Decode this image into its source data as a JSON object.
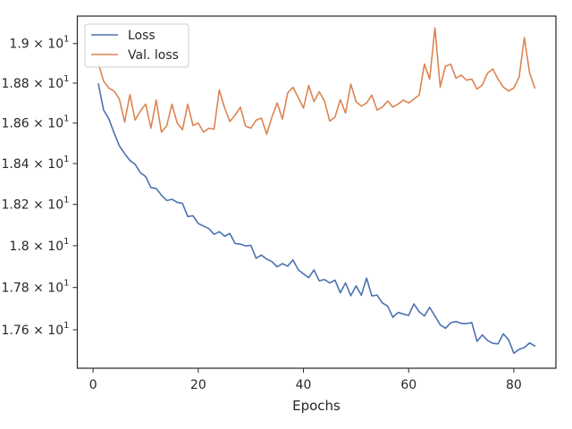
{
  "chart_data": {
    "type": "line",
    "xlabel": "Epochs",
    "ylabel": "",
    "title": "",
    "xlim": [
      -3,
      88
    ],
    "ylim": [
      17.42,
      19.14
    ],
    "y_scale": "log",
    "grid": false,
    "legend_position": "upper-left",
    "x_ticks": [
      {
        "value": 0,
        "label": "0"
      },
      {
        "value": 20,
        "label": "20"
      },
      {
        "value": 40,
        "label": "40"
      },
      {
        "value": 60,
        "label": "60"
      },
      {
        "value": 80,
        "label": "80"
      }
    ],
    "y_ticks": [
      {
        "value": 17.6,
        "mantissa": "1.76",
        "base": "10",
        "exp": "1"
      },
      {
        "value": 17.8,
        "mantissa": "1.78",
        "base": "10",
        "exp": "1"
      },
      {
        "value": 18.0,
        "mantissa": "1.8",
        "base": "10",
        "exp": "1"
      },
      {
        "value": 18.2,
        "mantissa": "1.82",
        "base": "10",
        "exp": "1"
      },
      {
        "value": 18.4,
        "mantissa": "1.84",
        "base": "10",
        "exp": "1"
      },
      {
        "value": 18.6,
        "mantissa": "1.86",
        "base": "10",
        "exp": "1"
      },
      {
        "value": 18.8,
        "mantissa": "1.88",
        "base": "10",
        "exp": "1"
      },
      {
        "value": 19.0,
        "mantissa": "1.9",
        "base": "10",
        "exp": "1"
      }
    ],
    "series": [
      {
        "name": "Loss",
        "color": "#4c72b0",
        "x": [
          1,
          2,
          3,
          4,
          5,
          6,
          7,
          8,
          9,
          10,
          11,
          12,
          13,
          14,
          15,
          16,
          17,
          18,
          19,
          20,
          21,
          22,
          23,
          24,
          25,
          26,
          27,
          28,
          29,
          30,
          31,
          32,
          33,
          34,
          35,
          36,
          37,
          38,
          39,
          40,
          41,
          42,
          43,
          44,
          45,
          46,
          47,
          48,
          49,
          50,
          51,
          52,
          53,
          54,
          55,
          56,
          57,
          58,
          59,
          60,
          61,
          62,
          63,
          64,
          65,
          66,
          67,
          68,
          69,
          70,
          71,
          72,
          73,
          74,
          75,
          76,
          77,
          78,
          79,
          80,
          81,
          82,
          83,
          84
        ],
        "values": [
          18.796,
          18.665,
          18.621,
          18.551,
          18.487,
          18.449,
          18.415,
          18.396,
          18.355,
          18.336,
          18.282,
          18.278,
          18.245,
          18.219,
          18.225,
          18.21,
          18.205,
          18.141,
          18.145,
          18.107,
          18.095,
          18.083,
          18.055,
          18.068,
          18.046,
          18.059,
          18.011,
          18.008,
          17.999,
          18.002,
          17.94,
          17.955,
          17.936,
          17.924,
          17.899,
          17.914,
          17.902,
          17.932,
          17.885,
          17.865,
          17.847,
          17.884,
          17.832,
          17.838,
          17.822,
          17.835,
          17.775,
          17.822,
          17.761,
          17.808,
          17.763,
          17.845,
          17.76,
          17.764,
          17.727,
          17.712,
          17.659,
          17.682,
          17.674,
          17.668,
          17.722,
          17.685,
          17.665,
          17.706,
          17.665,
          17.624,
          17.607,
          17.633,
          17.639,
          17.63,
          17.629,
          17.634,
          17.546,
          17.576,
          17.55,
          17.536,
          17.534,
          17.581,
          17.553,
          17.49,
          17.508,
          17.517,
          17.538,
          17.524
        ]
      },
      {
        "name": "Val. loss",
        "color": "#dd8452",
        "x": [
          1,
          2,
          3,
          4,
          5,
          6,
          7,
          8,
          9,
          10,
          11,
          12,
          13,
          14,
          15,
          16,
          17,
          18,
          19,
          20,
          21,
          22,
          23,
          24,
          25,
          26,
          27,
          28,
          29,
          30,
          31,
          32,
          33,
          34,
          35,
          36,
          37,
          38,
          39,
          40,
          41,
          42,
          43,
          44,
          45,
          46,
          47,
          48,
          49,
          50,
          51,
          52,
          53,
          54,
          55,
          56,
          57,
          58,
          59,
          60,
          61,
          62,
          63,
          64,
          65,
          66,
          67,
          68,
          69,
          70,
          71,
          72,
          73,
          74,
          75,
          76,
          77,
          78,
          79,
          80,
          81,
          82,
          83,
          84
        ],
        "values": [
          18.9,
          18.81,
          18.775,
          18.76,
          18.72,
          18.605,
          18.742,
          18.615,
          18.661,
          18.695,
          18.575,
          18.715,
          18.555,
          18.587,
          18.694,
          18.6,
          18.567,
          18.694,
          18.588,
          18.6,
          18.555,
          18.575,
          18.57,
          18.765,
          18.677,
          18.608,
          18.64,
          18.679,
          18.585,
          18.575,
          18.615,
          18.625,
          18.545,
          18.63,
          18.7,
          18.62,
          18.751,
          18.779,
          18.728,
          18.675,
          18.788,
          18.707,
          18.757,
          18.71,
          18.61,
          18.63,
          18.717,
          18.65,
          18.795,
          18.707,
          18.685,
          18.7,
          18.74,
          18.665,
          18.68,
          18.71,
          18.68,
          18.695,
          18.715,
          18.7,
          18.72,
          18.74,
          18.896,
          18.82,
          19.08,
          18.78,
          18.885,
          18.895,
          18.825,
          18.84,
          18.815,
          18.82,
          18.77,
          18.79,
          18.85,
          18.871,
          18.82,
          18.78,
          18.76,
          18.776,
          18.83,
          19.03,
          18.85,
          18.775
        ]
      }
    ]
  }
}
